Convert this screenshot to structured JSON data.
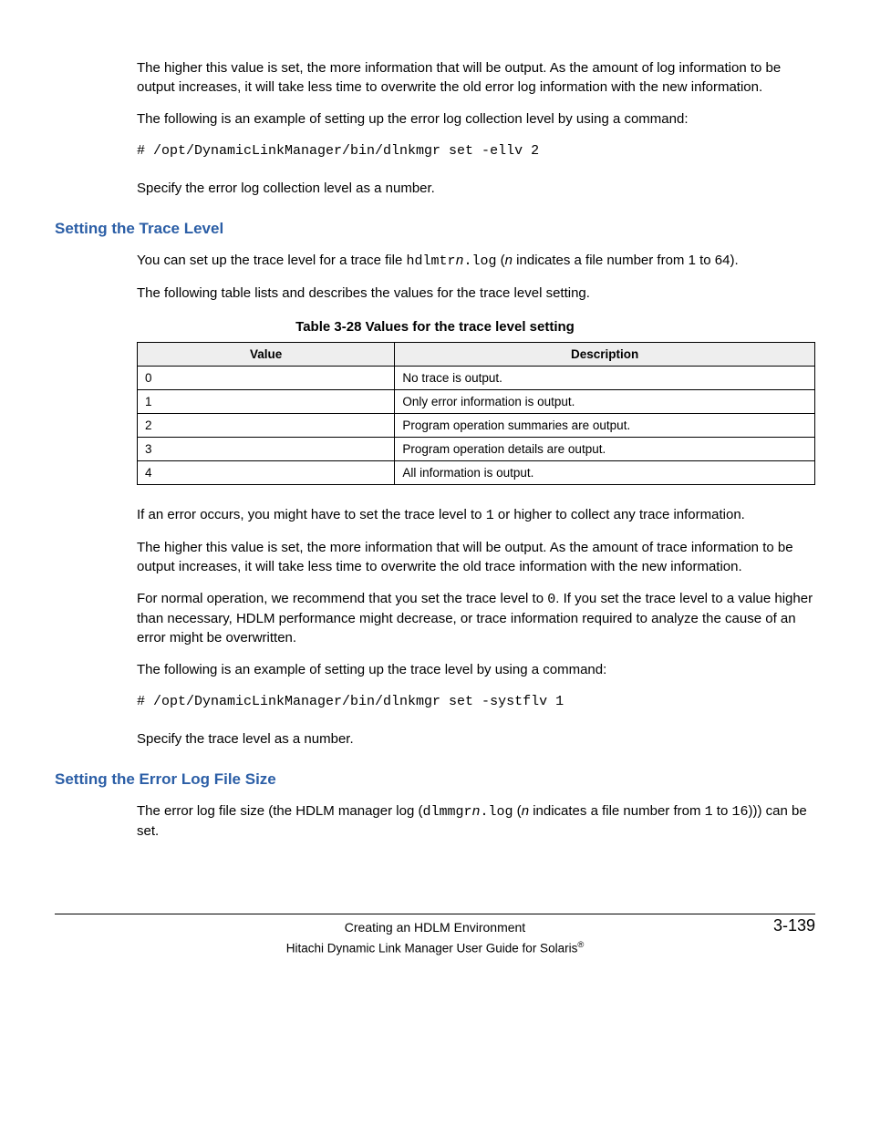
{
  "para1": "The higher this value is set, the more information that will be output. As the amount of log information to be output increases, it will take less time to overwrite the old error log information with the new information.",
  "para2": "The following is an example of setting up the error log collection level by using a command:",
  "code1": "# /opt/DynamicLinkManager/bin/dlnkmgr set -ellv 2",
  "para3": "Specify the error log collection level as a number.",
  "heading1": "Setting the Trace Level",
  "trace_intro": {
    "pre": "You can set up the trace level for a trace file ",
    "mono1": "hdlmtr",
    "italic1": "n",
    "mono2": ".log",
    "open_paren": " (",
    "italic2": "n",
    "post": " indicates a file number from 1 to 64)."
  },
  "para5": "The following table lists and describes the values for the trace level setting.",
  "table_caption": "Table 3-28 Values for the trace level setting",
  "table": {
    "col1": "Value",
    "col2": "Description",
    "rows": [
      {
        "v": "0",
        "d": "No trace is output."
      },
      {
        "v": "1",
        "d": "Only error information is output."
      },
      {
        "v": "2",
        "d": "Program operation summaries are output."
      },
      {
        "v": "3",
        "d": "Program operation details are output."
      },
      {
        "v": "4",
        "d": "All information is output."
      }
    ]
  },
  "after_table": {
    "pre": "If an error occurs, you might have to set the trace level to ",
    "mono": "1",
    "post": " or higher to collect any trace information."
  },
  "para7": "The higher this value is set, the more information that will be output. As the amount of trace information to be output increases, it will take less time to overwrite the old trace information with the new information.",
  "normal_op": {
    "pre": "For normal operation, we recommend that you set the trace level to ",
    "mono": "0",
    "post": ". If you set the trace level to a value higher than necessary, HDLM performance might decrease, or trace information required to analyze the cause of an error might be overwritten."
  },
  "para9": "The following is an example of setting up the trace level by using a command:",
  "code2": "# /opt/DynamicLinkManager/bin/dlnkmgr set -systflv 1",
  "para10": "Specify the trace level as a number.",
  "heading2": "Setting the Error Log File Size",
  "errlog": {
    "pre": "The error log file size (the HDLM manager log (",
    "mono1": "dlmmgr",
    "italic1": "n",
    "mono2": ".log",
    "open_paren": " (",
    "italic2": "n",
    "mid": " indicates a file number from ",
    "mono3": "1",
    "to": " to ",
    "mono4": "16",
    "post": "))) can be set."
  },
  "footer": {
    "chapter": "Creating an HDLM Environment",
    "page": "3-139",
    "book_pre": "Hitachi Dynamic Link Manager User Guide for Solaris",
    "reg": "®"
  }
}
